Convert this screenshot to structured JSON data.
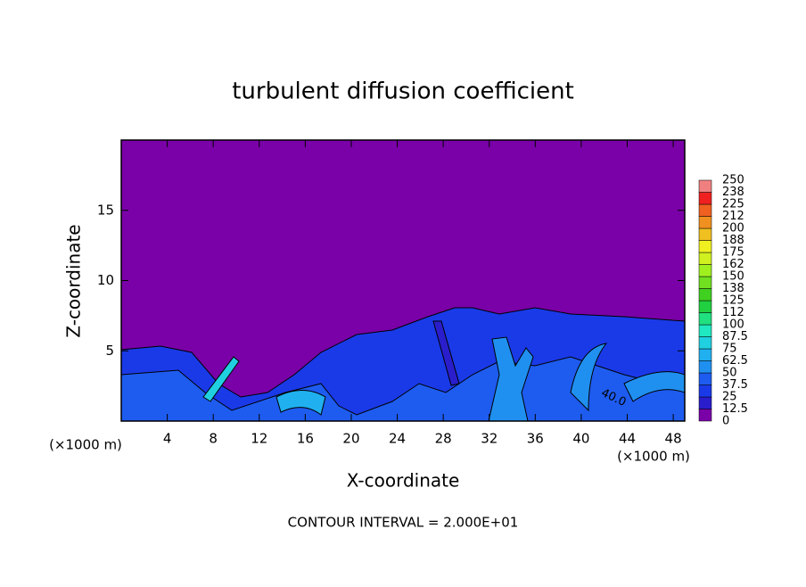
{
  "chart_data": {
    "type": "contour",
    "title": "turbulent diffusion coefficient",
    "x_label": "X-coordinate",
    "y_label": "Z-coordinate",
    "unit_labels": [
      "(×1000 m)",
      "(×1000 m)"
    ],
    "footer": "CONTOUR INTERVAL = 2.000E+01",
    "annotations": [
      "40.0"
    ],
    "xlim": [
      0,
      49
    ],
    "xticks": [
      4,
      8,
      12,
      16,
      20,
      24,
      28,
      32,
      36,
      40,
      44,
      48
    ],
    "ylim": [
      0,
      20
    ],
    "yticks": [
      5,
      10,
      15
    ],
    "colorbar": {
      "levels": [
        0,
        12.5,
        25,
        37.5,
        50,
        62.5,
        75,
        87.5,
        100,
        112,
        125,
        138,
        150,
        162,
        175,
        188,
        200,
        212,
        225,
        238,
        250
      ],
      "colors": [
        "#7a00a8",
        "#2a1ecc",
        "#1a3ae8",
        "#1e5cf0",
        "#2090f0",
        "#20b0f0",
        "#20d0e0",
        "#20e8c0",
        "#20e080",
        "#20d040",
        "#40d020",
        "#70e020",
        "#a0f020",
        "#d0f020",
        "#f0f020",
        "#f0c020",
        "#f09020",
        "#f06020",
        "#f02020",
        "#f08080"
      ]
    }
  }
}
